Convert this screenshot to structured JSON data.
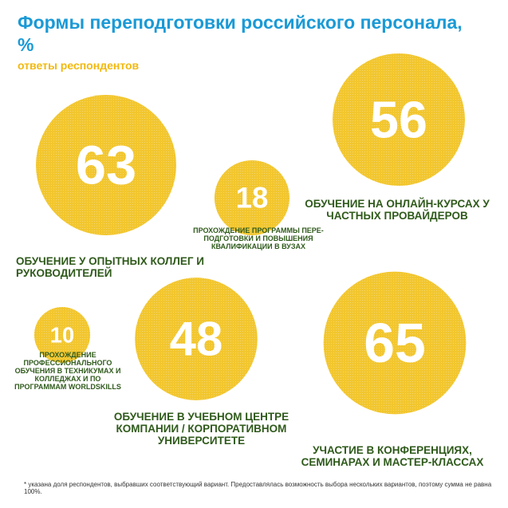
{
  "title": "Формы переподготовки российского персонала, %",
  "subtitle": "ответы респондентов",
  "colors": {
    "title": "#1a9ad6",
    "subtitle": "#f2b90f",
    "bubble": "#f2c62e",
    "label": "#2f5a1b"
  },
  "chart_data": {
    "type": "bubble",
    "unit": "%",
    "items": [
      {
        "label": "Обучение у опытных коллег и руководителей",
        "value": 63
      },
      {
        "label": "Прохождение программы пере-подготовки и повышения квалификации в вузах",
        "value": 18
      },
      {
        "label": "Обучение на онлайн-курсах у частных провайдеров",
        "value": 56
      },
      {
        "label": "Прохождение профессионального обучения в техникумах и колледжах и по программам WorldSkills",
        "value": 10
      },
      {
        "label": "Обучение в учебном центре компании / корпоративном университете",
        "value": 48
      },
      {
        "label": "Участие в конференциях, семинарах и мастер-классах",
        "value": 65
      }
    ]
  },
  "footnote": "* указана доля респондентов, выбравших соответствующий вариант. Предоставлялась возможность выбора нескольких вариантов, поэтому сумма не равна 100%."
}
